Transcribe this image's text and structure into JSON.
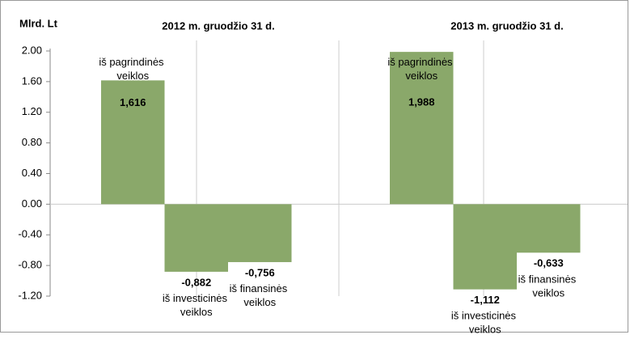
{
  "chart_data": {
    "type": "bar",
    "ylabel": "Mlrd. Lt",
    "categories": [
      "2012 m. gruodžio 31 d.",
      "2013 m. gruodžio 31 d."
    ],
    "series": [
      {
        "name": "iš pagrindinės veiklos",
        "color": "#8aa86a",
        "values": [
          1.616,
          1.988
        ],
        "value_labels": [
          "1,616",
          "1,988"
        ]
      },
      {
        "name": "iš investicinės veiklos",
        "color": "#8aa86a",
        "values": [
          -0.882,
          -1.112
        ],
        "value_labels": [
          "-0,882",
          "-1,112"
        ]
      },
      {
        "name": "iš finansinės veiklos",
        "color": "#8aa86a",
        "values": [
          -0.756,
          -0.633
        ],
        "value_labels": [
          "-0,756",
          "-0,633"
        ]
      }
    ],
    "ylim": [
      -1.2,
      2.0
    ],
    "yticks": [
      {
        "value": -1.2,
        "label": "-1.20"
      },
      {
        "value": -0.8,
        "label": "-0.80"
      },
      {
        "value": -0.4,
        "label": "-0.40"
      },
      {
        "value": 0,
        "label": "0.00"
      },
      {
        "value": 0.4,
        "label": "0.40"
      },
      {
        "value": 0.8,
        "label": "0.80"
      },
      {
        "value": 1.2,
        "label": "1.20"
      },
      {
        "value": 1.6,
        "label": "1.60"
      },
      {
        "value": 2.0,
        "label": "2.00"
      }
    ]
  }
}
